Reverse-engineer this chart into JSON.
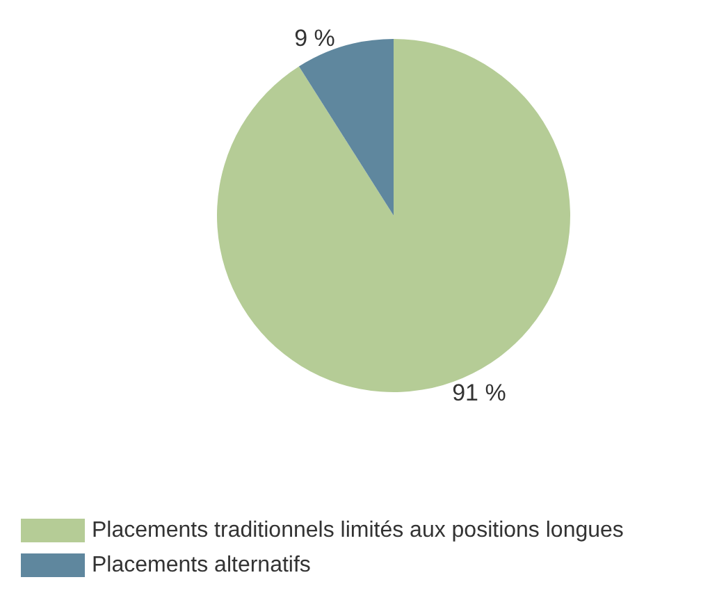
{
  "chart_data": {
    "type": "pie",
    "categories": [
      "Placements traditionnels limités aux positions longues",
      "Placements alternatifs"
    ],
    "values": [
      91,
      9
    ],
    "colors": [
      "#b5cc96",
      "#5f879e"
    ],
    "value_labels": [
      "91 %",
      "9 %"
    ],
    "legend": "bottom left"
  }
}
